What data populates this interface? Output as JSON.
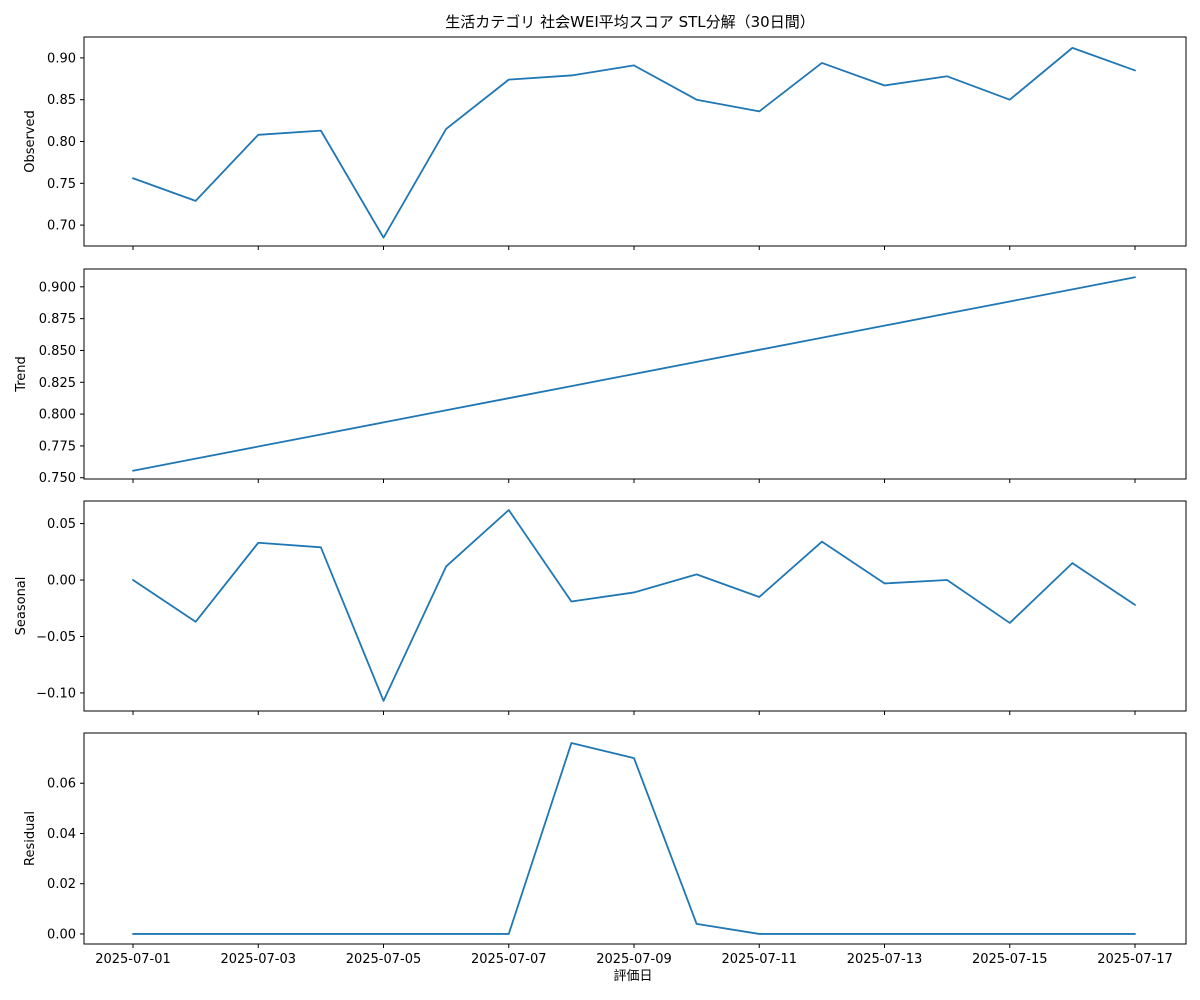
{
  "chart_data": {
    "type": "line",
    "title": "生活カテゴリ 社会WEI平均スコア STL分解（30日間）",
    "xlabel": "評価日",
    "line_color": "#1f77b4",
    "x": [
      "2025-07-01",
      "2025-07-02",
      "2025-07-03",
      "2025-07-04",
      "2025-07-05",
      "2025-07-06",
      "2025-07-07",
      "2025-07-08",
      "2025-07-09",
      "2025-07-10",
      "2025-07-11",
      "2025-07-12",
      "2025-07-13",
      "2025-07-14",
      "2025-07-15",
      "2025-07-16",
      "2025-07-17"
    ],
    "x_tick_labels": [
      "2025-07-01",
      "2025-07-03",
      "2025-07-05",
      "2025-07-07",
      "2025-07-09",
      "2025-07-11",
      "2025-07-13",
      "2025-07-15",
      "2025-07-17"
    ],
    "grid": false,
    "panels": [
      {
        "name": "observed",
        "ylabel": "Observed",
        "ylim": [
          0.675,
          0.925
        ],
        "y_ticks": [
          0.7,
          0.75,
          0.8,
          0.85,
          0.9
        ],
        "y_tick_labels": [
          "0.70",
          "0.75",
          "0.80",
          "0.85",
          "0.90"
        ],
        "values": [
          0.756,
          0.729,
          0.808,
          0.813,
          0.685,
          0.815,
          0.874,
          0.879,
          0.891,
          0.85,
          0.836,
          0.894,
          0.867,
          0.878,
          0.85,
          0.912,
          0.885
        ]
      },
      {
        "name": "trend",
        "ylabel": "Trend",
        "ylim": [
          0.749,
          0.914
        ],
        "y_ticks": [
          0.75,
          0.775,
          0.8,
          0.825,
          0.85,
          0.875,
          0.9
        ],
        "y_tick_labels": [
          "0.750",
          "0.775",
          "0.800",
          "0.825",
          "0.850",
          "0.875",
          "0.900"
        ],
        "values": [
          0.7555,
          0.765,
          0.7745,
          0.784,
          0.7935,
          0.803,
          0.8125,
          0.822,
          0.8315,
          0.841,
          0.8505,
          0.86,
          0.8695,
          0.879,
          0.8885,
          0.898,
          0.9075
        ]
      },
      {
        "name": "seasonal",
        "ylabel": "Seasonal",
        "ylim": [
          -0.116,
          0.07
        ],
        "y_ticks": [
          -0.1,
          -0.05,
          0.0,
          0.05
        ],
        "y_tick_labels": [
          "−0.10",
          "−0.05",
          "0.00",
          "0.05"
        ],
        "values": [
          0.0,
          -0.037,
          0.033,
          0.029,
          -0.107,
          0.012,
          0.062,
          -0.019,
          -0.011,
          0.005,
          -0.015,
          0.034,
          -0.003,
          0.0,
          -0.038,
          0.015,
          -0.022
        ]
      },
      {
        "name": "residual",
        "ylabel": "Residual",
        "ylim": [
          -0.004,
          0.08
        ],
        "y_ticks": [
          0.0,
          0.02,
          0.04,
          0.06
        ],
        "y_tick_labels": [
          "0.00",
          "0.02",
          "0.04",
          "0.06"
        ],
        "values": [
          0.0,
          0.0,
          0.0,
          0.0,
          0.0,
          0.0,
          0.0,
          0.076,
          0.07,
          0.004,
          0.0,
          0.0,
          0.0,
          0.0,
          0.0,
          0.0,
          0.0
        ]
      }
    ]
  }
}
